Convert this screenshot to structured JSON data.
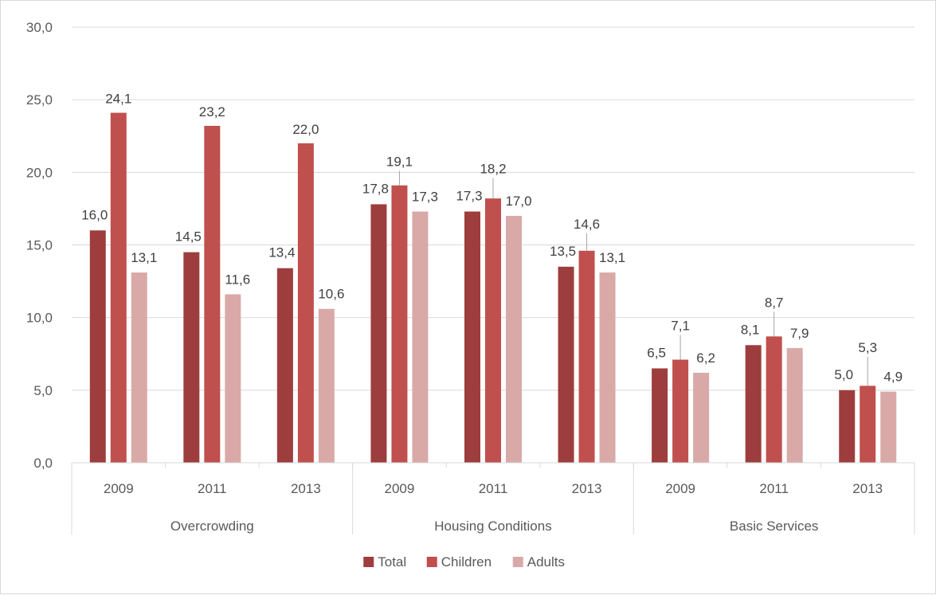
{
  "chart_data": {
    "type": "bar",
    "groups": [
      {
        "name": "Overcrowding",
        "categories": [
          "2009",
          "2011",
          "2013"
        ]
      },
      {
        "name": "Housing Conditions",
        "categories": [
          "2009",
          "2011",
          "2013"
        ]
      },
      {
        "name": "Basic Services",
        "categories": [
          "2009",
          "2011",
          "2013"
        ]
      }
    ],
    "series": [
      {
        "name": "Total",
        "color": "#9e3d3d",
        "values": [
          16.0,
          14.5,
          13.4,
          17.8,
          17.3,
          13.5,
          6.5,
          8.1,
          5.0
        ]
      },
      {
        "name": "Children",
        "color": "#c0504d",
        "values": [
          24.1,
          23.2,
          22.0,
          19.1,
          18.2,
          14.6,
          7.1,
          8.7,
          5.3
        ]
      },
      {
        "name": "Adults",
        "color": "#d9a9a8",
        "values": [
          13.1,
          11.6,
          10.6,
          17.3,
          17.0,
          13.1,
          6.2,
          7.9,
          4.9
        ]
      }
    ],
    "ylim": [
      0,
      30
    ],
    "yticks": [
      "0,0",
      "5,0",
      "10,0",
      "15,0",
      "20,0",
      "25,0",
      "30,0"
    ],
    "decimal_separator": ",",
    "grid": true,
    "legend_position": "bottom",
    "title": "",
    "xlabel": "",
    "ylabel": ""
  }
}
